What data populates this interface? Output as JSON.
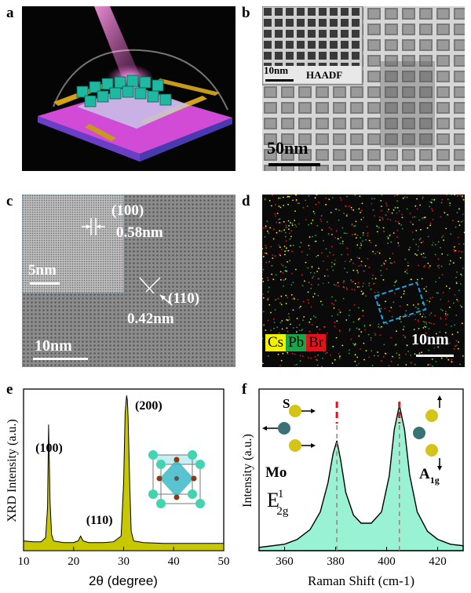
{
  "panels": {
    "a": {
      "label": "a"
    },
    "b": {
      "label": "b",
      "inset_scale": "10nm",
      "inset_mode": "HAADF",
      "scale": "50nm"
    },
    "c": {
      "label": "c",
      "plane1": "(100)",
      "d1": "0.58nm",
      "plane2": "(110)",
      "d2": "0.42nm",
      "inset_scale": "5nm",
      "scale": "10nm"
    },
    "d": {
      "label": "d",
      "scale": "10nm",
      "legend": [
        {
          "name": "Cs",
          "color": "#f2f200"
        },
        {
          "name": "Pb",
          "color": "#1aa54b"
        },
        {
          "name": "Br",
          "color": "#e8111b"
        }
      ]
    },
    "e": {
      "label": "e"
    },
    "f": {
      "label": "f",
      "atom_s": "S",
      "atom_mo": "Mo",
      "mode_left": "E",
      "mode_left_sup": "1",
      "mode_left_sub": "2g",
      "mode_right": "A",
      "mode_right_sub": "1g"
    }
  },
  "chart_data": [
    {
      "type": "line",
      "panel": "e",
      "title": "",
      "xlabel": "2θ (degree)",
      "ylabel": "XRD Intensity (a.u.)",
      "xlim": [
        10,
        50
      ],
      "xticks": [
        10,
        20,
        30,
        40,
        50
      ],
      "fill_color": "#c8c800",
      "peaks": [
        {
          "x": 15.1,
          "label": "(100)"
        },
        {
          "x": 21.4,
          "label": "(110)"
        },
        {
          "x": 30.6,
          "label": "(200)"
        }
      ],
      "series": [
        {
          "name": "XRD",
          "x": [
            10,
            12,
            13.5,
            14.4,
            14.8,
            15.0,
            15.15,
            15.3,
            15.6,
            16,
            18,
            20,
            20.9,
            21.4,
            21.9,
            23,
            26,
            28,
            29.5,
            30.0,
            30.3,
            30.5,
            30.6,
            30.75,
            30.9,
            31.2,
            31.5,
            32,
            34,
            38,
            42,
            46,
            50
          ],
          "y": [
            0.06,
            0.055,
            0.055,
            0.08,
            0.27,
            0.78,
            0.55,
            0.3,
            0.1,
            0.06,
            0.05,
            0.05,
            0.06,
            0.09,
            0.06,
            0.05,
            0.05,
            0.055,
            0.09,
            0.42,
            0.85,
            0.93,
            0.96,
            0.93,
            0.82,
            0.42,
            0.12,
            0.06,
            0.05,
            0.045,
            0.045,
            0.045,
            0.045
          ]
        }
      ]
    },
    {
      "type": "area",
      "panel": "f",
      "title": "",
      "xlabel": "Raman Shift (cm-1)",
      "ylabel": "Intensity (a.u.)",
      "xlim": [
        350,
        430
      ],
      "xticks": [
        360,
        380,
        400,
        420
      ],
      "fill_color": "#9af2d4",
      "reference_lines": [
        380.5,
        405
      ],
      "series": [
        {
          "name": "Raman",
          "x": [
            350,
            360,
            365,
            370,
            374,
            377,
            379,
            380.5,
            382,
            384,
            387,
            390,
            394,
            398,
            401,
            403,
            405,
            407,
            409,
            412,
            416,
            420,
            425,
            430
          ],
          "y": [
            0.02,
            0.04,
            0.07,
            0.13,
            0.24,
            0.42,
            0.6,
            0.68,
            0.56,
            0.36,
            0.22,
            0.17,
            0.17,
            0.24,
            0.46,
            0.75,
            0.9,
            0.75,
            0.47,
            0.24,
            0.12,
            0.07,
            0.04,
            0.03
          ]
        }
      ]
    }
  ]
}
